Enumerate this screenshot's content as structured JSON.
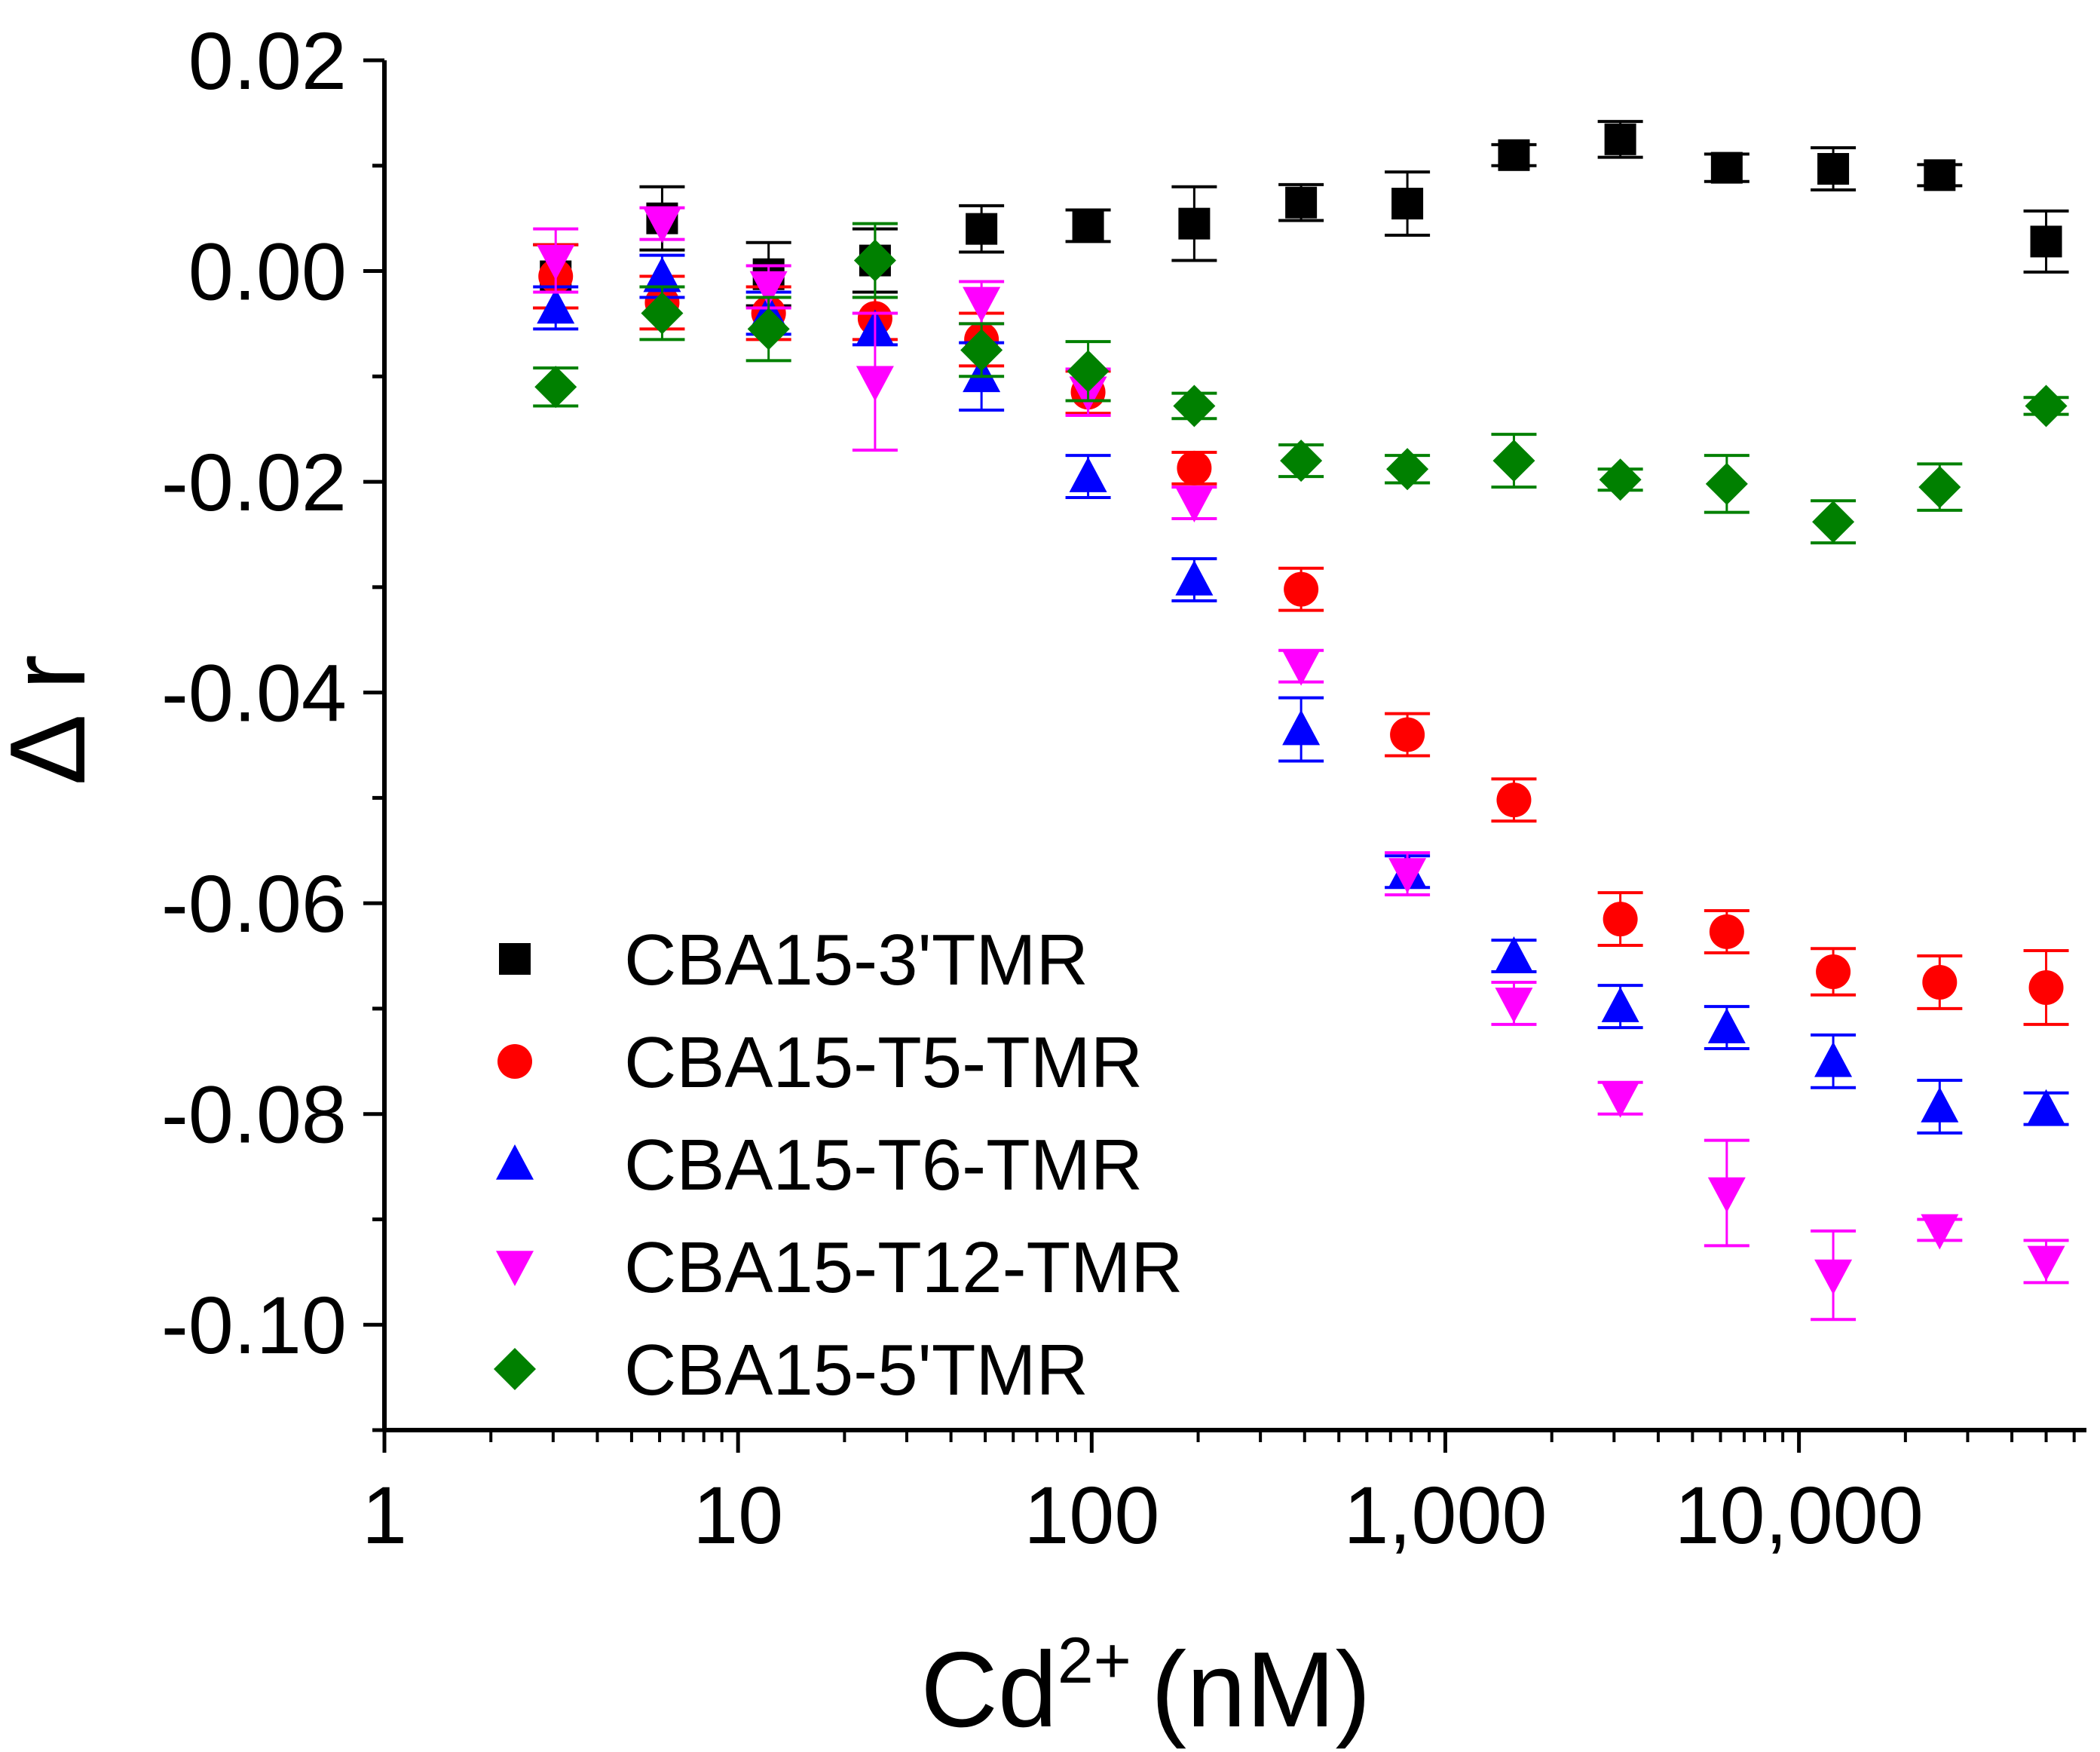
{
  "chart_data": {
    "type": "scatter",
    "xscale": "log",
    "xlim": [
      1,
      65000
    ],
    "ylim": [
      -0.11,
      0.02
    ],
    "xlabel": "Cd",
    "xlabel_sup": "2+",
    "xlabel_unit": "(nM)",
    "ylabel": "Δ r",
    "xticks": [
      {
        "value": 1,
        "label": "1"
      },
      {
        "value": 10,
        "label": "10"
      },
      {
        "value": 100,
        "label": "100"
      },
      {
        "value": 1000,
        "label": "1,000"
      },
      {
        "value": 10000,
        "label": "10,000"
      }
    ],
    "yticks": [
      {
        "value": 0.02,
        "label": "0.02"
      },
      {
        "value": 0.0,
        "label": "0.00"
      },
      {
        "value": -0.02,
        "label": "-0.02"
      },
      {
        "value": -0.04,
        "label": "-0.04"
      },
      {
        "value": -0.06,
        "label": "-0.06"
      },
      {
        "value": -0.08,
        "label": "-0.08"
      },
      {
        "value": -0.1,
        "label": "-0.10"
      }
    ],
    "x": [
      3.05,
      6.1,
      12.2,
      24.4,
      48.8,
      97.7,
      195,
      391,
      781,
      1563,
      3125,
      6250,
      12500,
      25000,
      50000
    ],
    "series": [
      {
        "name": "CBA15-3'TMR",
        "marker": "square",
        "color": "#000000",
        "values": [
          -0.0005,
          0.005,
          -0.0003,
          0.001,
          0.004,
          0.0043,
          0.0045,
          0.0065,
          0.0064,
          0.011,
          0.0125,
          0.0098,
          0.0097,
          0.0091,
          0.0028
        ],
        "errors": [
          0.003,
          0.003,
          0.003,
          0.003,
          0.0022,
          0.0015,
          0.0035,
          0.0017,
          0.003,
          0.001,
          0.0017,
          0.0013,
          0.002,
          0.001,
          0.0029
        ]
      },
      {
        "name": "CBA15-T5-TMR",
        "marker": "circle",
        "color": "#ff0000",
        "values": [
          -0.0005,
          -0.003,
          -0.004,
          -0.0045,
          -0.0065,
          -0.0115,
          -0.0187,
          -0.0302,
          -0.044,
          -0.0502,
          -0.0615,
          -0.0627,
          -0.0665,
          -0.0675,
          -0.068
        ],
        "errors": [
          0.003,
          0.0025,
          0.0025,
          0.002,
          0.0025,
          0.002,
          0.0015,
          0.002,
          0.002,
          0.002,
          0.0025,
          0.002,
          0.0022,
          0.0025,
          0.0035
        ]
      },
      {
        "name": "CBA15-T6-TMR",
        "marker": "triangle-up",
        "color": "#0000ff",
        "values": [
          -0.0035,
          -0.0005,
          -0.004,
          -0.0055,
          -0.01,
          -0.0195,
          -0.0293,
          -0.0435,
          -0.057,
          -0.065,
          -0.0698,
          -0.0718,
          -0.075,
          -0.0793,
          -0.0795
        ],
        "errors": [
          0.002,
          0.002,
          0.002,
          0.0015,
          0.0032,
          0.002,
          0.002,
          0.003,
          0.0015,
          0.0015,
          0.002,
          0.002,
          0.0025,
          0.0025,
          0.0015
        ]
      },
      {
        "name": "CBA15-T12-TMR",
        "marker": "triangle-down",
        "color": "#ff00ff",
        "values": [
          0.001,
          0.0045,
          -0.0015,
          -0.0105,
          -0.003,
          -0.0115,
          -0.022,
          -0.0375,
          -0.0572,
          -0.0695,
          -0.0785,
          -0.0875,
          -0.0953,
          -0.091,
          -0.094
        ],
        "errors": [
          0.003,
          0.0015,
          0.002,
          0.0065,
          0.002,
          0.0022,
          0.0015,
          0.0015,
          0.002,
          0.002,
          0.0015,
          0.005,
          0.0042,
          0.001,
          0.002
        ]
      },
      {
        "name": "CBA15-5'TMR",
        "marker": "diamond",
        "color": "#008000",
        "values": [
          -0.011,
          -0.004,
          -0.0055,
          0.001,
          -0.0075,
          -0.0095,
          -0.0128,
          -0.018,
          -0.0188,
          -0.018,
          -0.0198,
          -0.0202,
          -0.0238,
          -0.0205,
          -0.0128
        ],
        "errors": [
          0.0018,
          0.0025,
          0.003,
          0.0035,
          0.0025,
          0.0028,
          0.0012,
          0.0015,
          0.0013,
          0.0025,
          0.001,
          0.0027,
          0.002,
          0.0022,
          0.0008
        ]
      }
    ],
    "legend_position": "bottom-left"
  }
}
